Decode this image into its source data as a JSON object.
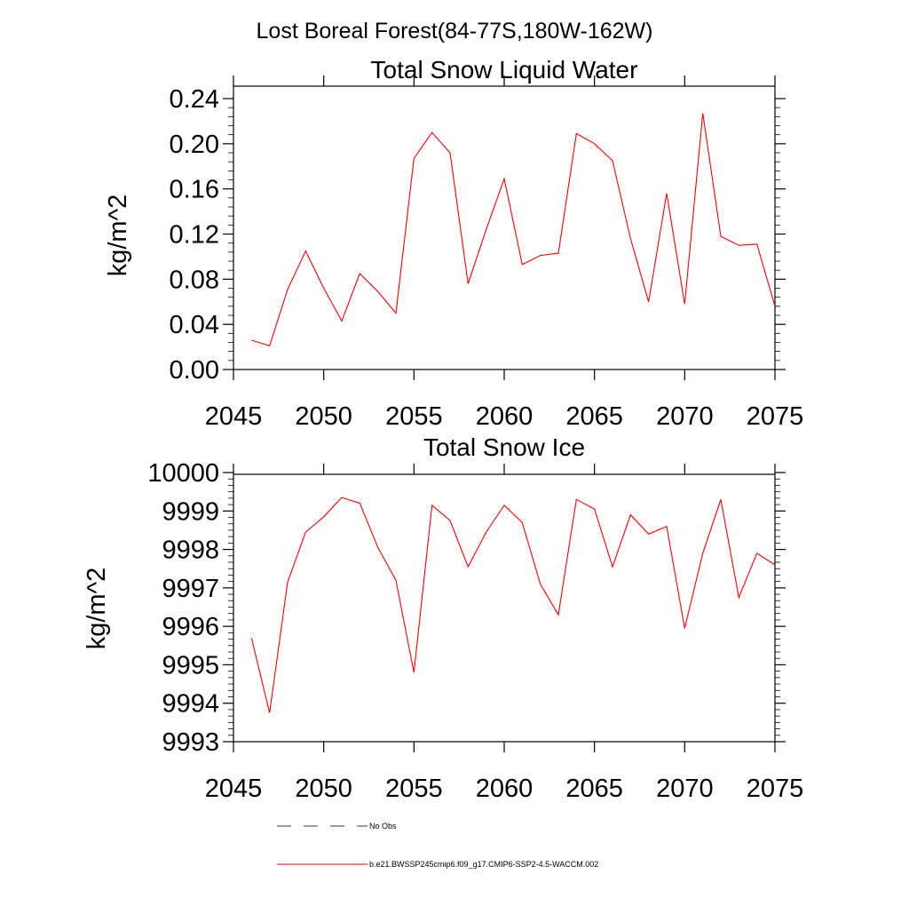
{
  "figure": {
    "title": "Lost Boreal Forest(84-77S,180W-162W)"
  },
  "legend": {
    "items": [
      {
        "label": "No Obs",
        "color": "#2c2c8c",
        "style": "dashed"
      },
      {
        "label": "b.e21.BWSSP245cmip6.f09_g17.CMIP6-SSP2-4.5-WACCM.002",
        "color": "#ff0000",
        "style": "solid"
      }
    ]
  },
  "chart_data": [
    {
      "type": "line",
      "title": "Total Snow Liquid Water",
      "xlabel": "",
      "ylabel": "kg/m^2",
      "xlim": [
        2045,
        2075
      ],
      "ylim": [
        0.0,
        0.24
      ],
      "x_ticks": [
        "2045",
        "2050",
        "2055",
        "2060",
        "2065",
        "2070",
        "2075"
      ],
      "y_ticks": [
        "0.00",
        "0.04",
        "0.08",
        "0.12",
        "0.16",
        "0.20",
        "0.24"
      ],
      "series": [
        {
          "color": "#ff0000",
          "x": [
            2046,
            2047,
            2048,
            2049,
            2050,
            2051,
            2052,
            2053,
            2054,
            2055,
            2056,
            2057,
            2058,
            2059,
            2060,
            2061,
            2062,
            2063,
            2064,
            2065,
            2066,
            2067,
            2068,
            2069,
            2070,
            2071,
            2072,
            2073,
            2074,
            2075
          ],
          "values": [
            0.026,
            0.021,
            0.071,
            0.105,
            0.072,
            0.043,
            0.085,
            0.069,
            0.05,
            0.187,
            0.21,
            0.192,
            0.076,
            0.124,
            0.169,
            0.093,
            0.101,
            0.103,
            0.209,
            0.2,
            0.185,
            0.116,
            0.06,
            0.156,
            0.058,
            0.227,
            0.118,
            0.11,
            0.111,
            0.056
          ]
        }
      ]
    },
    {
      "type": "line",
      "title": "Total Snow Ice",
      "xlabel": "",
      "ylabel": "kg/m^2",
      "xlim": [
        2045,
        2075
      ],
      "ylim": [
        9993,
        10000
      ],
      "x_ticks": [
        "2045",
        "2050",
        "2055",
        "2060",
        "2065",
        "2070",
        "2075"
      ],
      "y_ticks": [
        "9993",
        "9994",
        "9995",
        "9996",
        "9997",
        "9998",
        "9999",
        "10000"
      ],
      "series": [
        {
          "color": "#ff0000",
          "x": [
            2046,
            2047,
            2048,
            2049,
            2050,
            2051,
            2052,
            2053,
            2054,
            2055,
            2056,
            2057,
            2058,
            2059,
            2060,
            2061,
            2062,
            2063,
            2064,
            2065,
            2066,
            2067,
            2068,
            2069,
            2070,
            2071,
            2072,
            2073,
            2074,
            2075
          ],
          "values": [
            9995.7,
            9993.75,
            9997.15,
            9998.45,
            9998.85,
            9999.35,
            9999.2,
            9998.05,
            9997.2,
            9994.8,
            9999.15,
            9998.75,
            9997.55,
            9998.45,
            9999.15,
            9998.7,
            9997.1,
            9996.3,
            9999.3,
            9999.05,
            9997.55,
            9998.9,
            9998.4,
            9998.6,
            9995.95,
            9997.9,
            9999.3,
            9996.75,
            9997.9,
            9997.6
          ]
        }
      ]
    }
  ]
}
